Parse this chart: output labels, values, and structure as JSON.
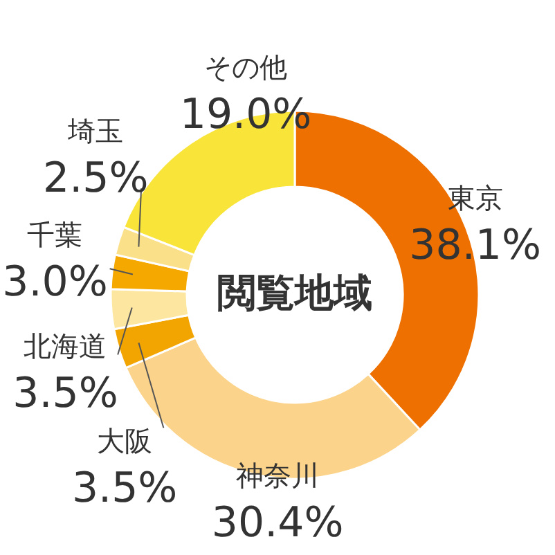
{
  "chart_data": {
    "type": "donut",
    "title": "閲覧地域",
    "categories": [
      "東京",
      "神奈川",
      "大阪",
      "北海道",
      "千葉",
      "埼玉",
      "その他"
    ],
    "values": [
      38.1,
      30.4,
      3.5,
      3.5,
      3.0,
      2.5,
      19.0
    ],
    "value_labels": [
      "38.1%",
      "30.4%",
      "3.5%",
      "3.5%",
      "3.0%",
      "2.5%",
      "19.0%"
    ],
    "colors": [
      "#ee7000",
      "#fbd38a",
      "#f2a500",
      "#fde7a0",
      "#f5a800",
      "#fbe08a",
      "#f9e43a"
    ]
  }
}
